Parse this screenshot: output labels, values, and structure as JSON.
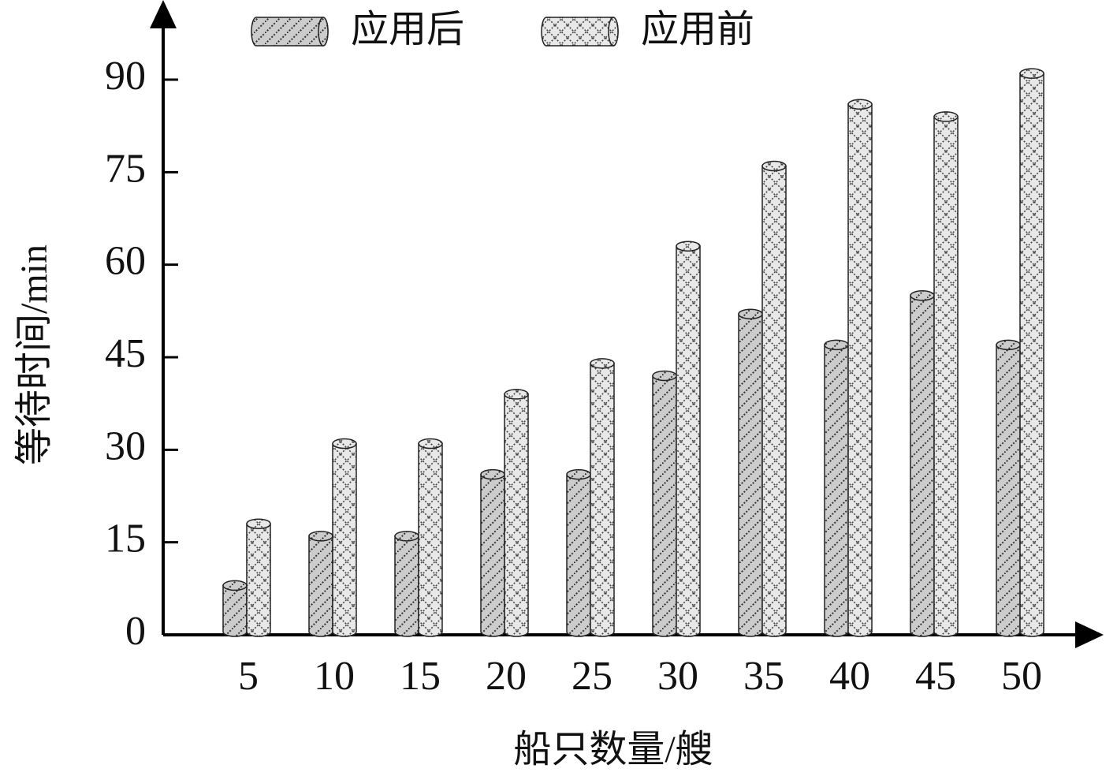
{
  "chart_data": {
    "type": "bar",
    "x_label": "船只数量/艘",
    "y_label": "等待时间/min",
    "categories": [
      "5",
      "10",
      "15",
      "20",
      "25",
      "30",
      "35",
      "40",
      "45",
      "50"
    ],
    "series": [
      {
        "name": "应用后",
        "color": "#cccccc",
        "values": [
          8,
          16,
          16,
          26,
          26,
          42,
          52,
          47,
          55,
          47
        ]
      },
      {
        "name": "应用前",
        "color": "#e8e8e8",
        "values": [
          18,
          31,
          31,
          39,
          44,
          63,
          76,
          86,
          84,
          91
        ]
      }
    ],
    "ylim": [
      0,
      102
    ],
    "yticks": [
      0,
      15,
      30,
      45,
      60,
      75,
      90
    ]
  }
}
